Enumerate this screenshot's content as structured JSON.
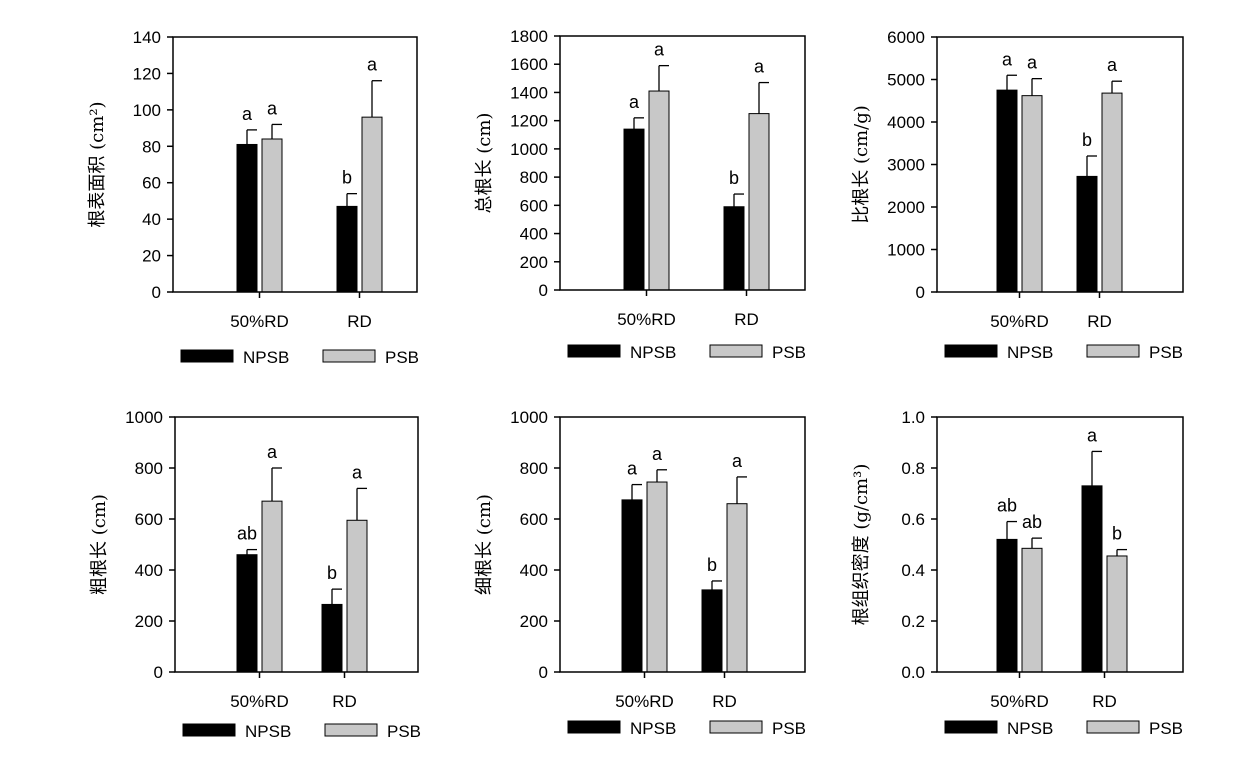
{
  "figure": {
    "series_names": [
      "NPSB",
      "PSB"
    ],
    "colors": {
      "NPSB": "#000000",
      "PSB": "#c8c8c8",
      "axis": "#000000"
    }
  },
  "chart_data": [
    {
      "type": "bar",
      "ylabel": "根表面积 (cm²)",
      "categories": [
        "50%RD",
        "RD"
      ],
      "ylim": [
        0,
        140
      ],
      "yticks": [
        0,
        20,
        40,
        60,
        80,
        100,
        120,
        140
      ],
      "series": [
        {
          "name": "NPSB",
          "values": [
            81,
            47
          ],
          "errors": [
            8,
            7
          ],
          "letters": [
            "a",
            "b"
          ]
        },
        {
          "name": "PSB",
          "values": [
            84,
            96
          ],
          "errors": [
            8,
            20
          ],
          "letters": [
            "a",
            "a"
          ]
        }
      ]
    },
    {
      "type": "bar",
      "ylabel": "总根长 (cm)",
      "categories": [
        "50%RD",
        "RD"
      ],
      "ylim": [
        0,
        1800
      ],
      "yticks": [
        0,
        200,
        400,
        600,
        800,
        1000,
        1200,
        1400,
        1600,
        1800
      ],
      "series": [
        {
          "name": "NPSB",
          "values": [
            1140,
            590
          ],
          "errors": [
            80,
            90
          ],
          "letters": [
            "a",
            "b"
          ]
        },
        {
          "name": "PSB",
          "values": [
            1410,
            1250
          ],
          "errors": [
            180,
            220
          ],
          "letters": [
            "a",
            "a"
          ]
        }
      ]
    },
    {
      "type": "bar",
      "ylabel": "比根长 (cm/g)",
      "categories": [
        "50%RD",
        "RD"
      ],
      "ylim": [
        0,
        6000
      ],
      "yticks": [
        0,
        1000,
        2000,
        3000,
        4000,
        5000,
        6000
      ],
      "series": [
        {
          "name": "NPSB",
          "values": [
            4750,
            2720
          ],
          "errors": [
            350,
            480
          ],
          "letters": [
            "a",
            "b"
          ]
        },
        {
          "name": "PSB",
          "values": [
            4620,
            4680
          ],
          "errors": [
            400,
            280
          ],
          "letters": [
            "a",
            "a"
          ]
        }
      ]
    },
    {
      "type": "bar",
      "ylabel": "粗根长 (cm)",
      "categories": [
        "50%RD",
        "RD"
      ],
      "ylim": [
        0,
        1000
      ],
      "yticks": [
        0,
        200,
        400,
        600,
        800,
        1000
      ],
      "series": [
        {
          "name": "NPSB",
          "values": [
            460,
            265
          ],
          "errors": [
            20,
            60
          ],
          "letters": [
            "ab",
            "b"
          ]
        },
        {
          "name": "PSB",
          "values": [
            670,
            595
          ],
          "errors": [
            130,
            125
          ],
          "letters": [
            "a",
            "a"
          ]
        }
      ]
    },
    {
      "type": "bar",
      "ylabel": "细根长 (cm)",
      "categories": [
        "50%RD",
        "RD"
      ],
      "ylim": [
        0,
        1000
      ],
      "yticks": [
        0,
        200,
        400,
        600,
        800,
        1000
      ],
      "series": [
        {
          "name": "NPSB",
          "values": [
            675,
            322
          ],
          "errors": [
            60,
            35
          ],
          "letters": [
            "a",
            "b"
          ]
        },
        {
          "name": "PSB",
          "values": [
            745,
            660
          ],
          "errors": [
            48,
            105
          ],
          "letters": [
            "a",
            "a"
          ]
        }
      ]
    },
    {
      "type": "bar",
      "ylabel": "根组织密度 (g/cm³)",
      "categories": [
        "50%RD",
        "RD"
      ],
      "ylim": [
        0,
        1.0
      ],
      "yticks": [
        "0.0",
        "0.2",
        "0.4",
        "0.6",
        "0.8",
        "1.0"
      ],
      "series": [
        {
          "name": "NPSB",
          "values": [
            0.52,
            0.73
          ],
          "errors": [
            0.07,
            0.135
          ],
          "letters": [
            "ab",
            "a"
          ]
        },
        {
          "name": "PSB",
          "values": [
            0.485,
            0.455
          ],
          "errors": [
            0.04,
            0.025
          ],
          "letters": [
            "ab",
            "b"
          ]
        }
      ]
    }
  ]
}
